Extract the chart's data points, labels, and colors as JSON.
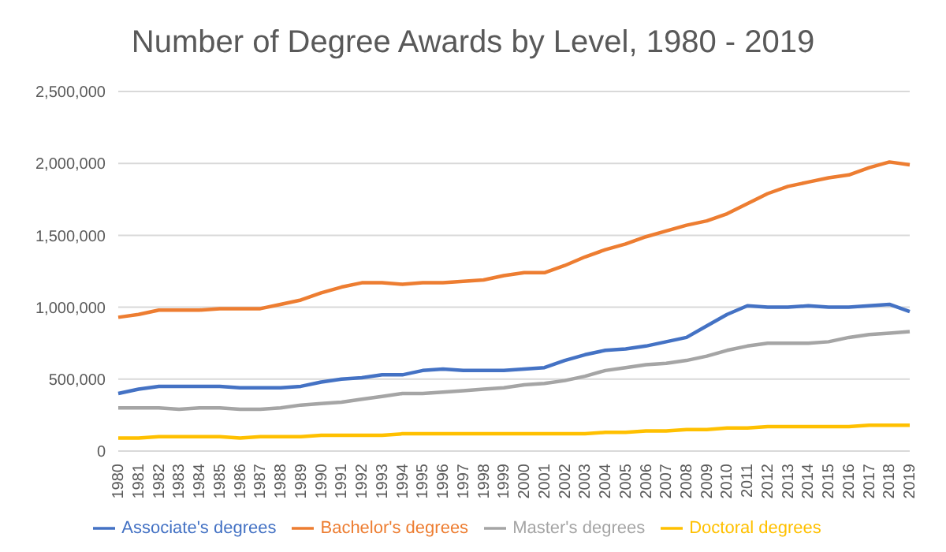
{
  "chart_data": {
    "type": "line",
    "title": "Number of Degree Awards by Level, 1980 - 2019",
    "categories": [
      "1980",
      "1981",
      "1982",
      "1983",
      "1984",
      "1985",
      "1986",
      "1987",
      "1988",
      "1989",
      "1990",
      "1991",
      "1992",
      "1993",
      "1994",
      "1995",
      "1996",
      "1997",
      "1998",
      "1999",
      "2000",
      "2001",
      "2002",
      "2003",
      "2004",
      "2005",
      "2006",
      "2007",
      "2008",
      "2009",
      "2010",
      "2011",
      "2012",
      "2013",
      "2014",
      "2015",
      "2016",
      "2017",
      "2018",
      "2019"
    ],
    "series": [
      {
        "name": "Associate's degrees",
        "color": "#4472c4",
        "values": [
          400000,
          430000,
          450000,
          450000,
          450000,
          450000,
          440000,
          440000,
          440000,
          450000,
          480000,
          500000,
          510000,
          530000,
          530000,
          560000,
          570000,
          560000,
          560000,
          560000,
          570000,
          580000,
          630000,
          670000,
          700000,
          710000,
          730000,
          760000,
          790000,
          870000,
          950000,
          1010000,
          1000000,
          1000000,
          1010000,
          1000000,
          1000000,
          1010000,
          1020000,
          970000
        ]
      },
      {
        "name": "Bachelor's degrees",
        "color": "#ed7d31",
        "values": [
          930000,
          950000,
          980000,
          980000,
          980000,
          990000,
          990000,
          990000,
          1020000,
          1050000,
          1100000,
          1140000,
          1170000,
          1170000,
          1160000,
          1170000,
          1170000,
          1180000,
          1190000,
          1220000,
          1240000,
          1240000,
          1290000,
          1350000,
          1400000,
          1440000,
          1490000,
          1530000,
          1570000,
          1600000,
          1650000,
          1720000,
          1790000,
          1840000,
          1870000,
          1900000,
          1920000,
          1970000,
          2010000,
          1990000
        ]
      },
      {
        "name": "Master's degrees",
        "color": "#a5a5a5",
        "values": [
          300000,
          300000,
          300000,
          290000,
          300000,
          300000,
          290000,
          290000,
          300000,
          320000,
          330000,
          340000,
          360000,
          380000,
          400000,
          400000,
          410000,
          420000,
          430000,
          440000,
          460000,
          470000,
          490000,
          520000,
          560000,
          580000,
          600000,
          610000,
          630000,
          660000,
          700000,
          730000,
          750000,
          750000,
          750000,
          760000,
          790000,
          810000,
          820000,
          830000
        ]
      },
      {
        "name": "Doctoral degrees",
        "color": "#ffc000",
        "values": [
          90000,
          90000,
          100000,
          100000,
          100000,
          100000,
          90000,
          100000,
          100000,
          100000,
          110000,
          110000,
          110000,
          110000,
          120000,
          120000,
          120000,
          120000,
          120000,
          120000,
          120000,
          120000,
          120000,
          120000,
          130000,
          130000,
          140000,
          140000,
          150000,
          150000,
          160000,
          160000,
          170000,
          170000,
          170000,
          170000,
          170000,
          180000,
          180000,
          180000
        ]
      }
    ],
    "ylim": [
      0,
      2500000
    ],
    "yticks": [
      0,
      {
        "value": 500000,
        "label": "500,000"
      },
      {
        "value": 1000000,
        "label": "1,000,000"
      },
      {
        "value": 1500000,
        "label": "1,500,000"
      },
      {
        "value": 2000000,
        "label": "2,000,000"
      },
      {
        "value": 2500000,
        "label": "2,500,000"
      }
    ],
    "grid": "y",
    "legend": "bottom",
    "marker": "none",
    "line_style": "solid"
  }
}
